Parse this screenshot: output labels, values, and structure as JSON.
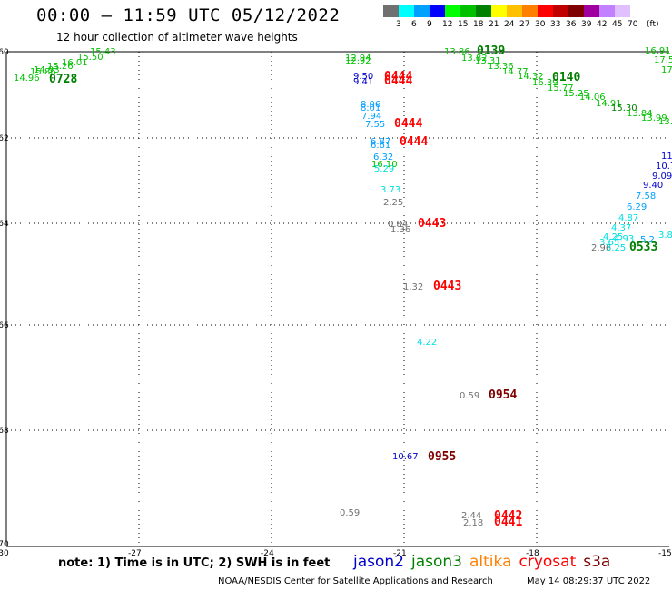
{
  "header": {
    "title": "00:00 – 11:59 UTC 05/12/2022",
    "subtitle": "12 hour collection of altimeter wave heights"
  },
  "color_scale": {
    "units": "(ft)",
    "colors": [
      "#707070",
      "#00ffff",
      "#00a0ff",
      "#0000ff",
      "#00ff00",
      "#00c000",
      "#008000",
      "#ffff00",
      "#ffc000",
      "#ff8000",
      "#ff0000",
      "#c00000",
      "#800000",
      "#a000a0",
      "#c080ff",
      "#e0c0ff",
      "#ffffff"
    ],
    "labels": [
      "3",
      "6",
      "9",
      "12",
      "15",
      "18",
      "21",
      "24",
      "27",
      "30",
      "33",
      "36",
      "39",
      "42",
      "45",
      "70"
    ]
  },
  "axes": {
    "lon_ticks": [
      "-30",
      "-27",
      "-24",
      "-21",
      "-18",
      "-15"
    ],
    "lat_ticks": [
      "-60",
      "-62",
      "-64",
      "-66",
      "-68",
      "-70"
    ]
  },
  "observations": [
    {
      "t": "15.43",
      "c": "#00c000"
    },
    {
      "t": "15.50",
      "c": "#00c000"
    },
    {
      "t": "16.01",
      "c": "#00c000"
    },
    {
      "t": "15.26",
      "c": "#00c000"
    },
    {
      "t": "14.93",
      "c": "#00c000"
    },
    {
      "t": "15.86",
      "c": "#00c000"
    },
    {
      "t": "14.96",
      "c": "#00c000"
    },
    {
      "t": "12.94",
      "c": "#00c000"
    },
    {
      "t": "12.92",
      "c": "#00c000"
    },
    {
      "t": "9.50",
      "c": "#0000cc"
    },
    {
      "t": "9.41",
      "c": "#0000cc"
    },
    {
      "t": "8.06",
      "c": "#00a0ff"
    },
    {
      "t": "8.01",
      "c": "#00a0ff"
    },
    {
      "t": "7.94",
      "c": "#00a0ff"
    },
    {
      "t": "7.55",
      "c": "#00a0ff"
    },
    {
      "t": "6.87",
      "c": "#00a0ff"
    },
    {
      "t": "6.61",
      "c": "#00a0ff"
    },
    {
      "t": "6.32",
      "c": "#00a0ff"
    },
    {
      "t": "16.10",
      "c": "#00c000"
    },
    {
      "t": "5.29",
      "c": "#00e0e0"
    },
    {
      "t": "3.73",
      "c": "#00e0e0"
    },
    {
      "t": "2.25",
      "c": "#707070"
    },
    {
      "t": "0.84",
      "c": "#707070"
    },
    {
      "t": "1.36",
      "c": "#707070"
    },
    {
      "t": "1.32",
      "c": "#707070"
    },
    {
      "t": "4.22",
      "c": "#00e0e0"
    },
    {
      "t": "0.59",
      "c": "#707070"
    },
    {
      "t": "10.67",
      "c": "#0000cc"
    },
    {
      "t": "0.59",
      "c": "#707070"
    },
    {
      "t": "2.44",
      "c": "#707070"
    },
    {
      "t": "2.18",
      "c": "#707070"
    },
    {
      "t": "13.86",
      "c": "#00c000"
    },
    {
      "t": "13.82",
      "c": "#00c000"
    },
    {
      "t": "13.31",
      "c": "#00c000"
    },
    {
      "t": "13.36",
      "c": "#00c000"
    },
    {
      "t": "14.77",
      "c": "#00c000"
    },
    {
      "t": "14.32",
      "c": "#00c000"
    },
    {
      "t": "16.39",
      "c": "#00c000"
    },
    {
      "t": "15.77",
      "c": "#00c000"
    },
    {
      "t": "15.25",
      "c": "#00c000"
    },
    {
      "t": "14.06",
      "c": "#00c000"
    },
    {
      "t": "14.91",
      "c": "#00c000"
    },
    {
      "t": "15.30",
      "c": "#008000"
    },
    {
      "t": "13.84",
      "c": "#00c000"
    },
    {
      "t": "13.99",
      "c": "#00c000"
    },
    {
      "t": "13.5",
      "c": "#00c000"
    },
    {
      "t": "16.91",
      "c": "#00c000"
    },
    {
      "t": "17.5",
      "c": "#00c000"
    },
    {
      "t": "17",
      "c": "#00c000"
    },
    {
      "t": "11",
      "c": "#0000cc"
    },
    {
      "t": "10.7",
      "c": "#0000cc"
    },
    {
      "t": "9.09",
      "c": "#0000cc"
    },
    {
      "t": "9.40",
      "c": "#0000cc"
    },
    {
      "t": "7.58",
      "c": "#00a0ff"
    },
    {
      "t": "6.29",
      "c": "#00a0ff"
    },
    {
      "t": "4.87",
      "c": "#00e0e0"
    },
    {
      "t": "4.37",
      "c": "#00e0e0"
    },
    {
      "t": "4.25",
      "c": "#00e0e0"
    },
    {
      "t": "3.65",
      "c": "#00e0e0"
    },
    {
      "t": "4.93",
      "c": "#00e0e0"
    },
    {
      "t": "2.96",
      "c": "#707070"
    },
    {
      "t": "3.25",
      "c": "#00e0e0"
    },
    {
      "t": "5.2",
      "c": "#00a0ff"
    },
    {
      "t": "3.8",
      "c": "#00e0e0"
    }
  ],
  "time_labels": [
    {
      "t": "0728",
      "c": "#008000"
    },
    {
      "t": "0444",
      "c": "#ff0000"
    },
    {
      "t": "0444",
      "c": "#ff0000"
    },
    {
      "t": "0444",
      "c": "#ff0000"
    },
    {
      "t": "0444",
      "c": "#ff0000"
    },
    {
      "t": "0443",
      "c": "#ff0000"
    },
    {
      "t": "0443",
      "c": "#ff0000"
    },
    {
      "t": "0954",
      "c": "#800000"
    },
    {
      "t": "0955",
      "c": "#800000"
    },
    {
      "t": "0442",
      "c": "#ff0000"
    },
    {
      "t": "0441",
      "c": "#ff0000"
    },
    {
      "t": "0139",
      "c": "#008000"
    },
    {
      "t": "0140",
      "c": "#008000"
    },
    {
      "t": "0533",
      "c": "#008000"
    }
  ],
  "footer": {
    "note": "note:  1) Time is in UTC;  2) SWH is in feet",
    "satellites": [
      {
        "name": "jason2",
        "color": "#0000cc"
      },
      {
        "name": "jason3",
        "color": "#008000"
      },
      {
        "name": "altika",
        "color": "#ff8000"
      },
      {
        "name": "cryosat",
        "color": "#ff0000"
      },
      {
        "name": "s3a",
        "color": "#800000"
      }
    ],
    "credit": "NOAA/NESDIS Center for Satellite Applications and Research",
    "timestamp": "May 14 08:29:37 UTC 2022"
  }
}
